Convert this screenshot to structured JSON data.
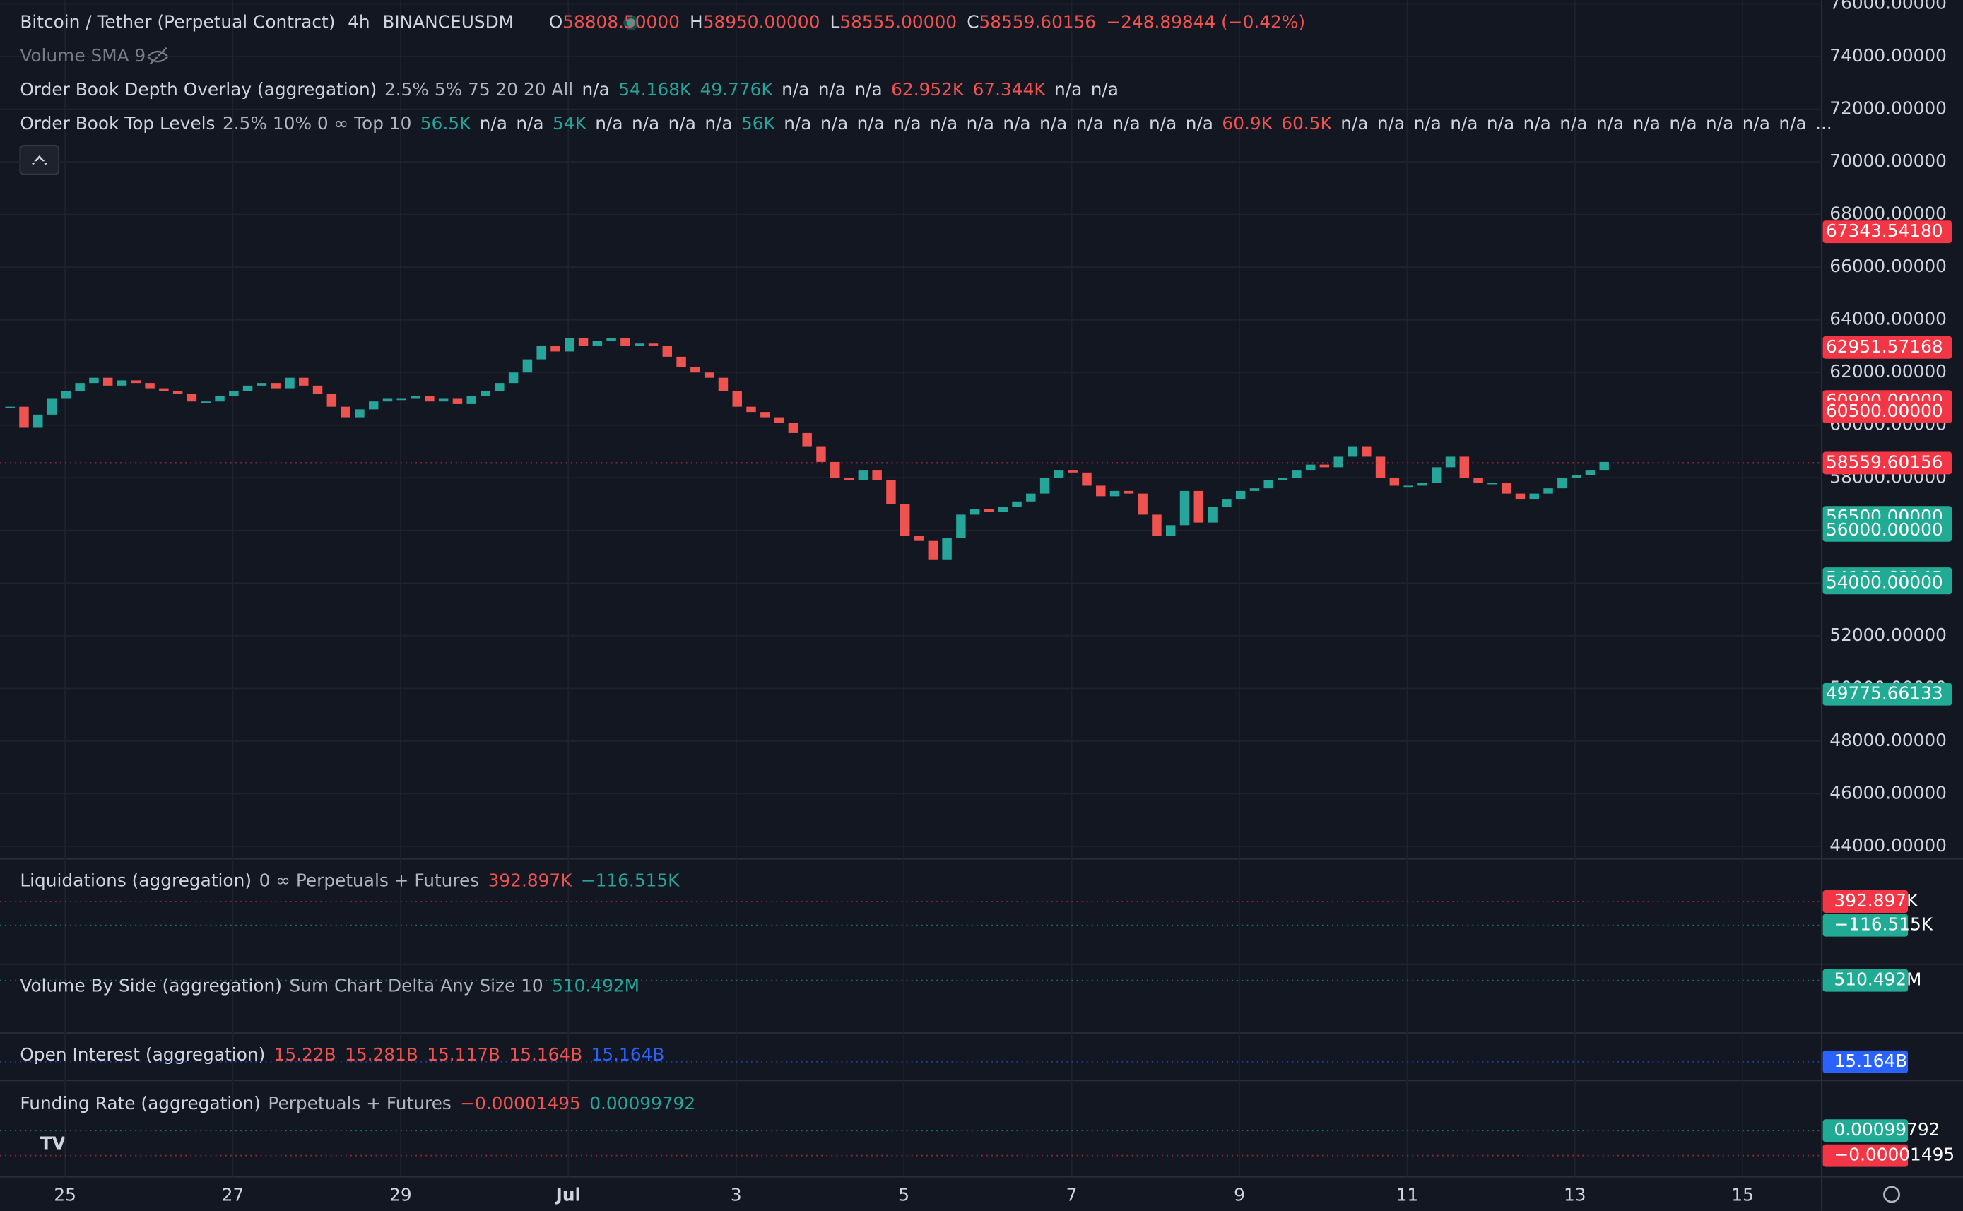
{
  "header": {
    "symbol": "Bitcoin / Tether (Perpetual Contract)",
    "interval": "4h",
    "exchange": "BINANCEUSDM",
    "ohlc": [
      {
        "label": "O",
        "value": "58808.50000"
      },
      {
        "label": "H",
        "value": "58950.00000"
      },
      {
        "label": "L",
        "value": "58555.00000"
      },
      {
        "label": "C",
        "value": "58559.60156"
      }
    ],
    "change": "−248.89844 (−0.42%)"
  },
  "indicators": [
    {
      "name": "Volume SMA 9",
      "params": "",
      "values": []
    },
    {
      "name": "Order Book Depth Overlay (aggregation)",
      "params": "2.5% 5% 75 20 20 All",
      "values": [
        {
          "text": "n/a",
          "color": "#d1d4dc"
        },
        {
          "text": "54.168K",
          "color": "#26a69a"
        },
        {
          "text": "49.776K",
          "color": "#26a69a"
        },
        {
          "text": "n/a",
          "color": "#d1d4dc"
        },
        {
          "text": "n/a",
          "color": "#d1d4dc"
        },
        {
          "text": "n/a",
          "color": "#d1d4dc"
        },
        {
          "text": "62.952K",
          "color": "#ef5350"
        },
        {
          "text": "67.344K",
          "color": "#ef5350"
        },
        {
          "text": "n/a",
          "color": "#d1d4dc"
        },
        {
          "text": "n/a",
          "color": "#d1d4dc"
        }
      ]
    },
    {
      "name": "Order Book Top Levels",
      "params": "2.5% 10% 0 ∞ Top 10",
      "values": [
        {
          "text": "56.5K",
          "color": "#26a69a"
        },
        {
          "text": "n/a",
          "color": "#d1d4dc"
        },
        {
          "text": "n/a",
          "color": "#d1d4dc"
        },
        {
          "text": "54K",
          "color": "#26a69a"
        },
        {
          "text": "n/a",
          "color": "#d1d4dc"
        },
        {
          "text": "n/a",
          "color": "#d1d4dc"
        },
        {
          "text": "n/a",
          "color": "#d1d4dc"
        },
        {
          "text": "n/a",
          "color": "#d1d4dc"
        },
        {
          "text": "56K",
          "color": "#26a69a"
        },
        {
          "text": "n/a",
          "color": "#d1d4dc"
        },
        {
          "text": "n/a",
          "color": "#d1d4dc"
        },
        {
          "text": "n/a",
          "color": "#d1d4dc"
        },
        {
          "text": "n/a",
          "color": "#d1d4dc"
        },
        {
          "text": "n/a",
          "color": "#d1d4dc"
        },
        {
          "text": "n/a",
          "color": "#d1d4dc"
        },
        {
          "text": "n/a",
          "color": "#d1d4dc"
        },
        {
          "text": "n/a",
          "color": "#d1d4dc"
        },
        {
          "text": "n/a",
          "color": "#d1d4dc"
        },
        {
          "text": "n/a",
          "color": "#d1d4dc"
        },
        {
          "text": "n/a",
          "color": "#d1d4dc"
        },
        {
          "text": "n/a",
          "color": "#d1d4dc"
        },
        {
          "text": "60.9K",
          "color": "#ef5350"
        },
        {
          "text": "60.5K",
          "color": "#ef5350"
        },
        {
          "text": "n/a",
          "color": "#d1d4dc"
        },
        {
          "text": "n/a",
          "color": "#d1d4dc"
        },
        {
          "text": "n/a",
          "color": "#d1d4dc"
        },
        {
          "text": "n/a",
          "color": "#d1d4dc"
        },
        {
          "text": "n/a",
          "color": "#d1d4dc"
        },
        {
          "text": "n/a",
          "color": "#d1d4dc"
        },
        {
          "text": "n/a",
          "color": "#d1d4dc"
        },
        {
          "text": "n/a",
          "color": "#d1d4dc"
        },
        {
          "text": "n/a",
          "color": "#d1d4dc"
        },
        {
          "text": "n/a",
          "color": "#d1d4dc"
        },
        {
          "text": "n/a",
          "color": "#d1d4dc"
        },
        {
          "text": "n/a",
          "color": "#d1d4dc"
        },
        {
          "text": "n/a",
          "color": "#d1d4dc"
        },
        {
          "text": "...",
          "color": "#d1d4dc"
        }
      ]
    }
  ],
  "price_chart": {
    "type": "candlestick",
    "up_color": "#26a69a",
    "down_color": "#ef5350",
    "ylim": [
      43520,
      76140
    ],
    "closes": [
      60700,
      59900,
      60400,
      61000,
      61300,
      61600,
      61800,
      61500,
      61700,
      61600,
      61400,
      61300,
      61200,
      60900,
      60900,
      61100,
      61300,
      61500,
      61600,
      61400,
      61800,
      61500,
      61200,
      60700,
      60300,
      60600,
      60900,
      61000,
      61000,
      61100,
      60900,
      61000,
      60800,
      61100,
      61300,
      61600,
      62000,
      62500,
      63000,
      62800,
      63300,
      63000,
      63200,
      63300,
      63000,
      63100,
      63000,
      62600,
      62200,
      62000,
      61800,
      61300,
      60700,
      60500,
      60300,
      60100,
      59700,
      59200,
      58600,
      58000,
      57900,
      58300,
      57900,
      57000,
      55800,
      55600,
      54900,
      55700,
      56600,
      56800,
      56700,
      56900,
      57100,
      57400,
      58000,
      58300,
      58200,
      57700,
      57300,
      57500,
      57400,
      56600,
      55800,
      56200,
      57500,
      56300,
      56900,
      57200,
      57500,
      57600,
      57900,
      58000,
      58300,
      58500,
      58400,
      58800,
      59200,
      58800,
      58000,
      57700,
      57700,
      57800,
      58400,
      58800,
      58000,
      57800,
      57800,
      57400,
      57200,
      57400,
      57600,
      58000,
      58100,
      58300,
      58600
    ],
    "yticks": [
      {
        "value": 76000,
        "label": "76000.00000"
      },
      {
        "value": 74000,
        "label": "74000.00000"
      },
      {
        "value": 72000,
        "label": "72000.00000"
      },
      {
        "value": 70000,
        "label": "70000.00000"
      },
      {
        "value": 68000,
        "label": "68000.00000"
      },
      {
        "value": 66000,
        "label": "66000.00000"
      },
      {
        "value": 64000,
        "label": "64000.00000"
      },
      {
        "value": 62000,
        "label": "62000.00000"
      },
      {
        "value": 60000,
        "label": "60000.00000"
      },
      {
        "value": 58000,
        "label": "58000.00000"
      },
      {
        "value": 56000,
        "label": "56000.00000"
      },
      {
        "value": 54000,
        "label": "54000.00000"
      },
      {
        "value": 52000,
        "label": "52000.00000"
      },
      {
        "value": 50000,
        "label": "50000.00000"
      },
      {
        "value": 48000,
        "label": "48000.00000"
      },
      {
        "value": 46000,
        "label": "46000.00000"
      },
      {
        "value": 44000,
        "label": "44000.00000"
      }
    ],
    "badges": [
      {
        "value": 67343.5418,
        "label": "67343.54180",
        "color": "#f23645"
      },
      {
        "value": 62951.57168,
        "label": "62951.57168",
        "color": "#f23645"
      },
      {
        "value": 60900,
        "label": "60900.00000",
        "color": "#f23645"
      },
      {
        "value": 60500,
        "label": "60500.00000",
        "color": "#f23645"
      },
      {
        "value": 58559.60156,
        "label": "58559.60156",
        "color": "#f23645"
      },
      {
        "value": 56500,
        "label": "56500.00000",
        "color": "#22ab94"
      },
      {
        "value": 56000,
        "label": "56000.00000",
        "color": "#22ab94"
      },
      {
        "value": 54167.63145,
        "label": "54167.63145",
        "color": "#22ab94"
      },
      {
        "value": 54000,
        "label": "54000.00000",
        "color": "#22ab94"
      },
      {
        "value": 49775.66133,
        "label": "49775.66133",
        "color": "#22ab94"
      }
    ]
  },
  "panels": [
    {
      "name": "Liquidations (aggregation)",
      "params": "0 ∞ Perpetuals + Futures",
      "values": [
        {
          "text": "392.897K",
          "color": "#ef5350"
        },
        {
          "text": "−116.515K",
          "color": "#26a69a"
        }
      ],
      "badges": [
        {
          "text": "392.897K",
          "color": "#f23645"
        },
        {
          "text": "−116.515K",
          "color": "#22ab94"
        }
      ]
    },
    {
      "name": "Volume By Side (aggregation)",
      "params": "Sum Chart Delta Any Size 10",
      "values": [
        {
          "text": "510.492M",
          "color": "#26a69a"
        }
      ],
      "badges": [
        {
          "text": "510.492M",
          "color": "#22ab94"
        }
      ]
    },
    {
      "name": "Open Interest (aggregation)",
      "params": "",
      "values": [
        {
          "text": "15.22B",
          "color": "#ef5350"
        },
        {
          "text": "15.281B",
          "color": "#ef5350"
        },
        {
          "text": "15.117B",
          "color": "#ef5350"
        },
        {
          "text": "15.164B",
          "color": "#ef5350"
        },
        {
          "text": "15.164B",
          "color": "#2962ff"
        }
      ],
      "badges": [
        {
          "text": "15.164B",
          "color": "#2962ff"
        }
      ]
    },
    {
      "name": "Funding Rate (aggregation)",
      "params": "Perpetuals + Futures",
      "values": [
        {
          "text": "−0.00001495",
          "color": "#ef5350"
        },
        {
          "text": "0.00099792",
          "color": "#26a69a"
        }
      ],
      "badges": [
        {
          "text": "0.00099792",
          "color": "#22ab94"
        },
        {
          "text": "−0.00001495",
          "color": "#f23645"
        }
      ]
    }
  ],
  "time_axis": [
    "25",
    "27",
    "29",
    "Jul",
    "3",
    "5",
    "7",
    "9",
    "11",
    "13",
    "15"
  ]
}
